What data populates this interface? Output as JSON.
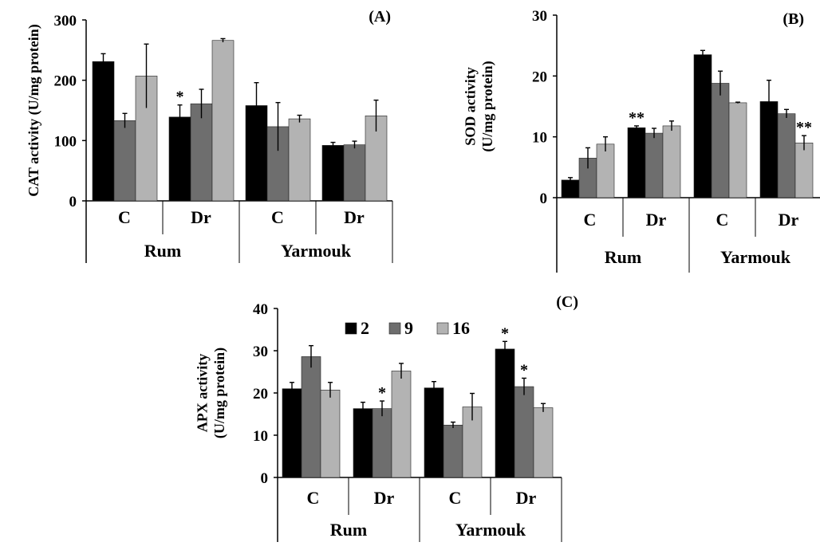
{
  "figure": {
    "legend": [
      {
        "label": "2",
        "color": "#000000"
      },
      {
        "label": "9",
        "color": "#6e6e6e"
      },
      {
        "label": "16",
        "color": "#b3b3b3"
      }
    ]
  },
  "chart_data": [
    {
      "type": "bar",
      "panel_label": "(A)",
      "ylabel": "CAT activity (U/mg protein)",
      "ylim": [
        0,
        300
      ],
      "yticks": [
        0,
        100,
        200,
        300
      ],
      "groups": [
        {
          "label": "Rum",
          "categories": [
            "C",
            "Dr"
          ]
        },
        {
          "label": "Yarmouk",
          "categories": [
            "C",
            "Dr"
          ]
        }
      ],
      "categories": [
        "C",
        "Dr",
        "C",
        "Dr"
      ],
      "series": [
        {
          "name": "2",
          "color": "#000000",
          "values": [
            231,
            139,
            158,
            92
          ],
          "errors": [
            13,
            20,
            38,
            5
          ]
        },
        {
          "name": "9",
          "color": "#6e6e6e",
          "values": [
            133,
            161,
            123,
            93
          ],
          "errors": [
            12,
            24,
            40,
            6
          ]
        },
        {
          "name": "16",
          "color": "#b3b3b3",
          "values": [
            207,
            266,
            136,
            141
          ],
          "errors": [
            53,
            3,
            6,
            26
          ]
        }
      ],
      "annotations": [
        {
          "category": 1,
          "series": 0,
          "text": "*"
        }
      ],
      "grid": false
    },
    {
      "type": "bar",
      "panel_label": "(B)",
      "ylabel": "SOD activity (U/mg protein)",
      "ylim": [
        0,
        30
      ],
      "yticks": [
        0,
        10,
        20,
        30
      ],
      "groups": [
        {
          "label": "Rum",
          "categories": [
            "C",
            "Dr"
          ]
        },
        {
          "label": "Yarmouk",
          "categories": [
            "C",
            "Dr"
          ]
        }
      ],
      "categories": [
        "C",
        "Dr",
        "C",
        "Dr"
      ],
      "series": [
        {
          "name": "2",
          "color": "#000000",
          "values": [
            2.9,
            11.5,
            23.5,
            15.8
          ],
          "errors": [
            0.4,
            0.3,
            0.7,
            3.5
          ]
        },
        {
          "name": "9",
          "color": "#6e6e6e",
          "values": [
            6.5,
            10.6,
            18.8,
            13.8
          ],
          "errors": [
            1.7,
            0.8,
            2.0,
            0.7
          ]
        },
        {
          "name": "16",
          "color": "#b3b3b3",
          "values": [
            8.8,
            11.8,
            15.6,
            9.0
          ],
          "errors": [
            1.2,
            0.8,
            0.1,
            1.2
          ]
        }
      ],
      "annotations": [
        {
          "category": 1,
          "series": 0,
          "text": "**"
        },
        {
          "category": 3,
          "series": 2,
          "text": "**"
        }
      ],
      "grid": false
    },
    {
      "type": "bar",
      "panel_label": "(C)",
      "ylabel": "APX activity (U/mg protein)",
      "ylim": [
        0,
        40
      ],
      "yticks": [
        0,
        10,
        20,
        30,
        40
      ],
      "groups": [
        {
          "label": "Rum",
          "categories": [
            "C",
            "Dr"
          ]
        },
        {
          "label": "Yarmouk",
          "categories": [
            "C",
            "Dr"
          ]
        }
      ],
      "categories": [
        "C",
        "Dr",
        "C",
        "Dr"
      ],
      "series": [
        {
          "name": "2",
          "color": "#000000",
          "values": [
            21,
            16.3,
            21.2,
            30.4
          ],
          "errors": [
            1.5,
            1.5,
            1.5,
            1.8
          ]
        },
        {
          "name": "9",
          "color": "#6e6e6e",
          "values": [
            28.6,
            16.3,
            12.4,
            21.5
          ],
          "errors": [
            2.6,
            1.8,
            0.7,
            2.0
          ]
        },
        {
          "name": "16",
          "color": "#b3b3b3",
          "values": [
            20.7,
            25.2,
            16.7,
            16.5
          ],
          "errors": [
            1.8,
            1.8,
            3.2,
            1.0
          ]
        }
      ],
      "annotations": [
        {
          "category": 1,
          "series": 1,
          "text": "*"
        },
        {
          "category": 3,
          "series": 0,
          "text": "*"
        },
        {
          "category": 3,
          "series": 1,
          "text": "*"
        }
      ],
      "legend": "top",
      "grid": false
    }
  ]
}
